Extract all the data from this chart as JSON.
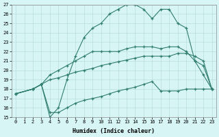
{
  "xlabel": "Humidex (Indice chaleur)",
  "xlim": [
    -0.5,
    23.5
  ],
  "ylim": [
    15,
    27
  ],
  "xticks": [
    0,
    1,
    2,
    3,
    4,
    5,
    6,
    7,
    8,
    9,
    10,
    11,
    12,
    13,
    14,
    15,
    16,
    17,
    18,
    19,
    20,
    21,
    22,
    23
  ],
  "yticks": [
    15,
    16,
    17,
    18,
    19,
    20,
    21,
    22,
    23,
    24,
    25,
    26,
    27
  ],
  "bg_color": "#d8f5f5",
  "line_color": "#2e7d6e",
  "grid_color": "#b8dede",
  "line1_x": [
    0,
    2,
    3,
    4,
    5,
    6,
    7,
    8,
    9,
    10,
    11,
    12,
    13,
    14,
    15,
    16,
    17,
    18,
    19,
    20,
    21,
    22,
    23
  ],
  "line1_y": [
    17.5,
    18.0,
    18.5,
    15.5,
    15.5,
    16.0,
    16.5,
    16.8,
    17.0,
    17.2,
    17.5,
    17.8,
    18.0,
    18.2,
    18.5,
    18.8,
    17.8,
    17.8,
    17.8,
    18.0,
    18.0,
    18.0,
    18.0
  ],
  "line2_x": [
    0,
    2,
    3,
    4,
    5,
    6,
    7,
    8,
    9,
    10,
    11,
    12,
    13,
    14,
    15,
    16,
    17,
    18,
    19,
    20,
    21,
    22,
    23
  ],
  "line2_y": [
    17.5,
    18.0,
    18.5,
    19.0,
    19.2,
    19.5,
    19.8,
    20.0,
    20.2,
    20.5,
    20.7,
    20.9,
    21.1,
    21.3,
    21.5,
    21.5,
    21.5,
    21.5,
    21.8,
    21.8,
    21.5,
    21.0,
    18.0
  ],
  "line3_x": [
    0,
    2,
    3,
    4,
    5,
    6,
    7,
    8,
    9,
    10,
    11,
    12,
    13,
    14,
    15,
    16,
    17,
    18,
    19,
    20,
    21,
    22,
    23
  ],
  "line3_y": [
    17.5,
    18.0,
    18.5,
    19.5,
    20.0,
    20.5,
    21.0,
    21.5,
    22.0,
    22.0,
    22.0,
    22.0,
    22.3,
    22.5,
    22.5,
    22.5,
    22.3,
    22.5,
    22.5,
    22.0,
    21.0,
    20.5,
    18.0
  ],
  "line4_x": [
    0,
    2,
    3,
    4,
    5,
    6,
    7,
    8,
    9,
    10,
    11,
    12,
    13,
    14,
    15,
    16,
    17,
    18,
    19,
    20,
    21,
    22,
    23
  ],
  "line4_y": [
    17.5,
    18.0,
    18.5,
    15.0,
    16.0,
    19.0,
    21.5,
    23.5,
    24.5,
    25.0,
    26.0,
    26.5,
    27.0,
    27.0,
    26.5,
    25.5,
    26.5,
    26.5,
    25.0,
    24.5,
    21.0,
    19.5,
    18.0
  ]
}
